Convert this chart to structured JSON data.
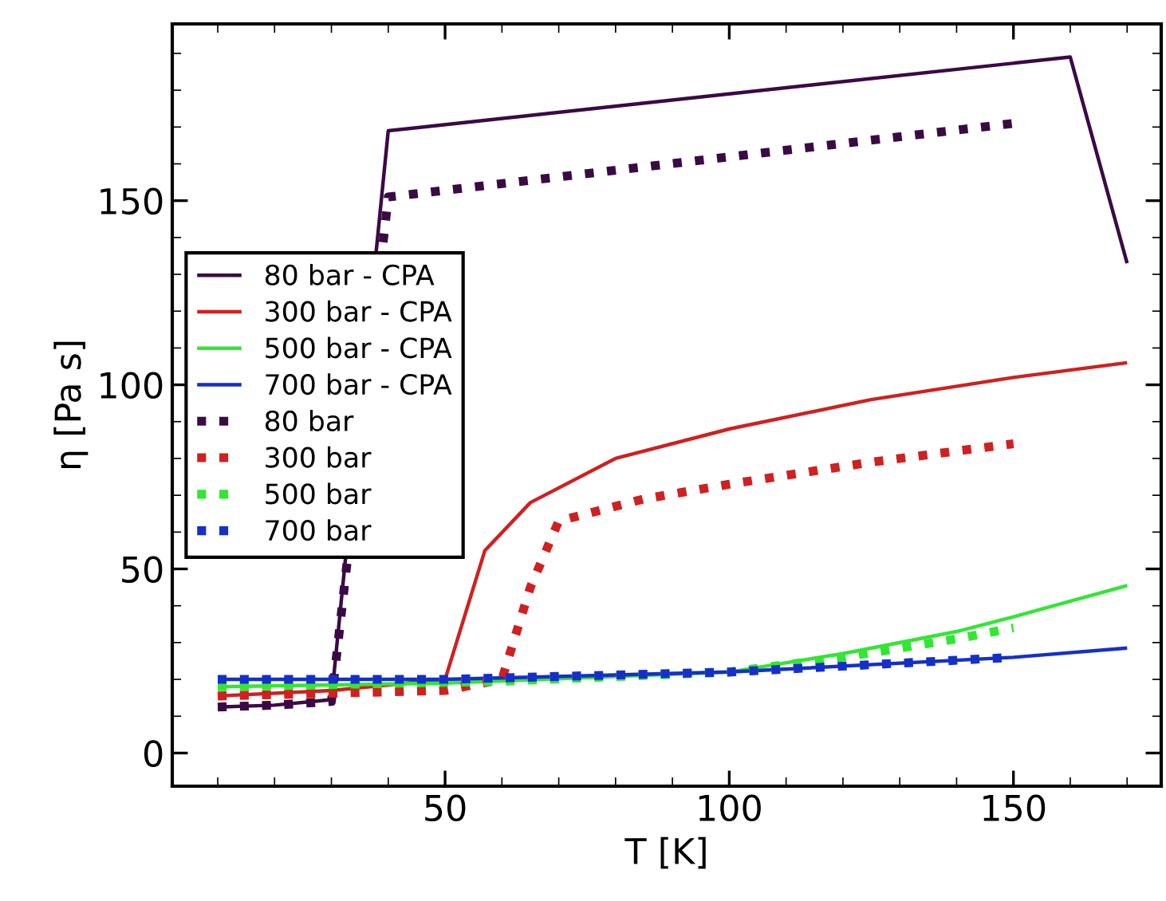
{
  "chart_data": {
    "type": "line",
    "xlabel": "T [K]",
    "ylabel": "η [Pa s]",
    "xlim": [
      2,
      176
    ],
    "ylim": [
      -9,
      198
    ],
    "xticks": [
      50,
      100,
      150
    ],
    "yticks": [
      0,
      50,
      100,
      150
    ],
    "grid": false,
    "legend": "left",
    "marker": "none",
    "series": [
      {
        "name": "80 bar - CPA",
        "color": "#3b0a45",
        "line_style": "solid",
        "x": [
          10,
          20,
          30,
          40,
          160,
          170
        ],
        "values": [
          12.5,
          13,
          14.5,
          169,
          189,
          133
        ]
      },
      {
        "name": "300 bar - CPA",
        "color": "#d02020",
        "line_style": "solid",
        "x": [
          10,
          30,
          50,
          57,
          65,
          80,
          100,
          125,
          150,
          170
        ],
        "values": [
          15.5,
          17,
          20,
          55,
          68,
          80,
          88,
          96,
          102,
          106
        ]
      },
      {
        "name": "500 bar - CPA",
        "color": "#33e633",
        "line_style": "solid",
        "x": [
          10,
          50,
          100,
          120,
          140,
          150,
          170
        ],
        "values": [
          18,
          19,
          22,
          27,
          33,
          37,
          45.5
        ]
      },
      {
        "name": "700 bar - CPA",
        "color": "#1530c8",
        "line_style": "solid",
        "x": [
          10,
          50,
          100,
          150,
          170
        ],
        "values": [
          20,
          20,
          22,
          26,
          28.5
        ]
      },
      {
        "name": "80 bar",
        "color": "#3b0a45",
        "line_style": "dotted",
        "x": [
          10,
          20,
          30,
          40,
          150
        ],
        "values": [
          12.5,
          13,
          14,
          151,
          171
        ]
      },
      {
        "name": "300 bar",
        "color": "#d02020",
        "line_style": "dotted",
        "x": [
          10,
          50,
          60,
          65,
          70,
          85,
          100,
          125,
          150
        ],
        "values": [
          15.5,
          17,
          20,
          45,
          63,
          69,
          73,
          79,
          84
        ]
      },
      {
        "name": "500 bar",
        "color": "#33e633",
        "line_style": "dotted",
        "x": [
          10,
          60,
          100,
          120,
          140,
          150
        ],
        "values": [
          18,
          19.5,
          22,
          26,
          31,
          34
        ]
      },
      {
        "name": "700 bar",
        "color": "#1530c8",
        "line_style": "dotted",
        "x": [
          10,
          50,
          100,
          150
        ],
        "values": [
          20,
          20,
          22,
          26
        ]
      }
    ]
  }
}
